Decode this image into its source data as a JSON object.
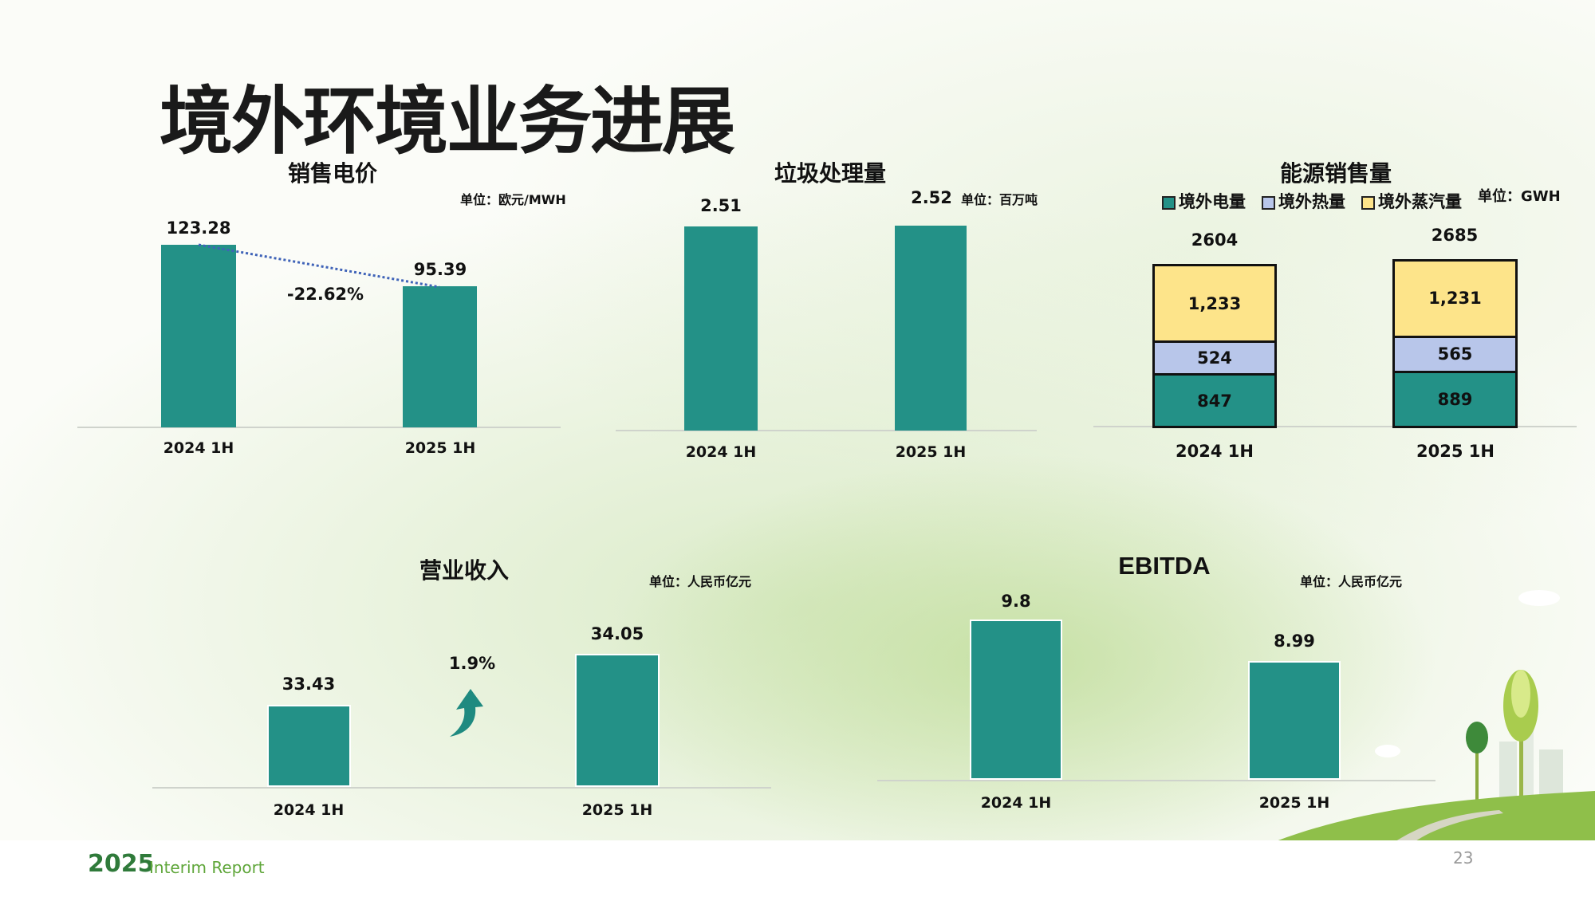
{
  "page_title": "境外环境业务进展",
  "footer": {
    "year": "2025",
    "report": "Interim Report",
    "page_number": "23"
  },
  "colors": {
    "bar": "#239187",
    "heat": "#b8c6ea",
    "steam": "#fde48a",
    "accent_green": "#3a8a3a"
  },
  "chart_data": [
    {
      "type": "bar",
      "title": "销售电价",
      "unit": "单位：欧元/MWH",
      "categories": [
        "2024 1H",
        "2025 1H"
      ],
      "values": [
        123.28,
        95.39
      ],
      "labels": [
        "123.28",
        "95.39"
      ],
      "annotation": "-22.62%",
      "trend_line": "dotted"
    },
    {
      "type": "bar",
      "title": "垃圾处理量",
      "unit": "单位：百万吨",
      "categories": [
        "2024 1H",
        "2025 1H"
      ],
      "values": [
        2.51,
        2.52
      ],
      "labels": [
        "2.51",
        "2.52"
      ]
    },
    {
      "type": "bar",
      "stacked": true,
      "title": "能源销售量",
      "unit": "单位：GWH",
      "categories": [
        "2024 1H",
        "2025 1H"
      ],
      "series": [
        {
          "name": "境外电量",
          "values": [
            847,
            889
          ],
          "labels": [
            "847",
            "889"
          ],
          "color": "#239187"
        },
        {
          "name": "境外热量",
          "values": [
            524,
            565
          ],
          "labels": [
            "524",
            "565"
          ],
          "color": "#b8c6ea"
        },
        {
          "name": "境外蒸汽量",
          "values": [
            1233,
            1231
          ],
          "labels": [
            "1,233",
            "1,231"
          ],
          "color": "#fde48a"
        }
      ],
      "totals": [
        "2604",
        "2685"
      ],
      "legend": "top"
    },
    {
      "type": "bar",
      "title": "营业收入",
      "unit": "单位：人民币亿元",
      "categories": [
        "2024 1H",
        "2025 1H"
      ],
      "values": [
        33.43,
        34.05
      ],
      "labels": [
        "33.43",
        "34.05"
      ],
      "annotation": "1.9%",
      "ylim": [
        32.43,
        34.3
      ]
    },
    {
      "type": "bar",
      "title": "EBITDA",
      "unit": "单位：人民币亿元",
      "categories": [
        "2024 1H",
        "2025 1H"
      ],
      "values": [
        9.8,
        8.99
      ],
      "labels": [
        "9.8",
        "8.99"
      ],
      "ylim": [
        6.64,
        10
      ]
    }
  ]
}
